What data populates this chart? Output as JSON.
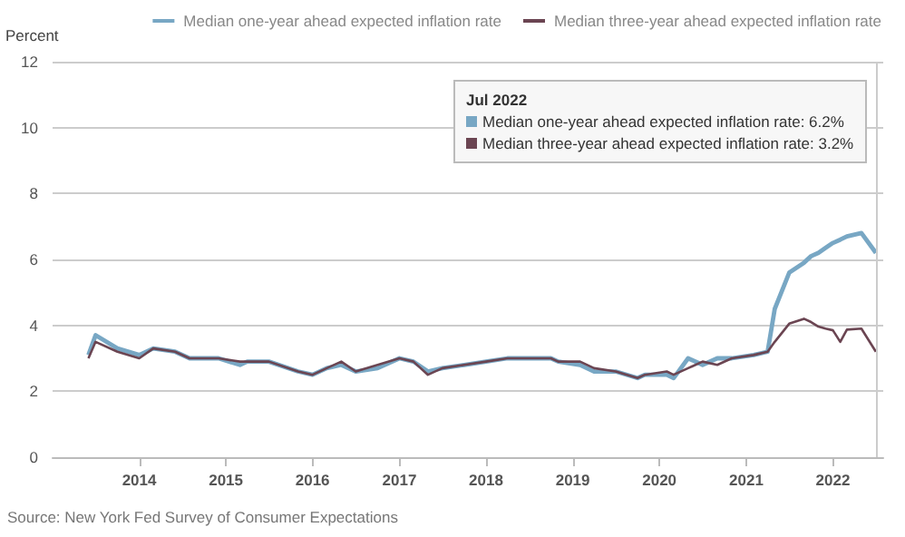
{
  "chart_data": {
    "type": "line",
    "ylabel": "Percent",
    "x": [
      "2013-06",
      "2013-07",
      "2013-10",
      "2014-01",
      "2014-03",
      "2014-06",
      "2014-08",
      "2014-12",
      "2015-03",
      "2015-04",
      "2015-07",
      "2015-11",
      "2016-01",
      "2016-03",
      "2016-05",
      "2016-07",
      "2016-10",
      "2017-01",
      "2017-03",
      "2017-05",
      "2017-07",
      "2017-10",
      "2018-01",
      "2018-04",
      "2018-07",
      "2018-10",
      "2018-11",
      "2019-02",
      "2019-04",
      "2019-07",
      "2019-10",
      "2019-11",
      "2020-02",
      "2020-03",
      "2020-05",
      "2020-07",
      "2020-09",
      "2020-11",
      "2021-02",
      "2021-04",
      "2021-05",
      "2021-07",
      "2021-09",
      "2021-10",
      "2021-11",
      "2021-12",
      "2022-01",
      "2022-02",
      "2022-03",
      "2022-05",
      "2022-07"
    ],
    "series": [
      {
        "name": "Median one-year ahead expected inflation rate",
        "color": "#78a7c4",
        "values": [
          3.1,
          3.7,
          3.3,
          3.1,
          3.3,
          3.2,
          3.0,
          3.0,
          2.8,
          2.9,
          2.9,
          2.6,
          2.5,
          2.7,
          2.8,
          2.6,
          2.7,
          3.0,
          2.9,
          2.6,
          2.7,
          2.8,
          2.9,
          3.0,
          3.0,
          3.0,
          2.9,
          2.8,
          2.6,
          2.6,
          2.4,
          2.5,
          2.5,
          2.4,
          3.0,
          2.8,
          3.0,
          3.0,
          3.1,
          3.2,
          4.5,
          5.6,
          5.9,
          6.1,
          6.2,
          6.35,
          6.5,
          6.6,
          6.7,
          6.8,
          6.2
        ]
      },
      {
        "name": "Median three-year ahead expected inflation rate",
        "color": "#6b4552",
        "values": [
          3.0,
          3.5,
          3.2,
          3.0,
          3.3,
          3.2,
          3.0,
          3.0,
          2.9,
          2.9,
          2.9,
          2.6,
          2.5,
          2.7,
          2.9,
          2.6,
          2.8,
          3.0,
          2.9,
          2.5,
          2.7,
          2.8,
          2.9,
          3.0,
          3.0,
          3.0,
          2.9,
          2.9,
          2.7,
          2.6,
          2.4,
          2.5,
          2.6,
          2.5,
          2.7,
          2.9,
          2.8,
          3.0,
          3.1,
          3.2,
          3.5,
          4.05,
          4.2,
          4.1,
          3.96,
          3.9,
          3.85,
          3.5,
          3.87,
          3.9,
          3.2
        ]
      }
    ],
    "xlim": [
      "2013-01",
      "2022-08"
    ],
    "xticks": [
      "2014",
      "2015",
      "2016",
      "2017",
      "2018",
      "2019",
      "2020",
      "2021",
      "2022"
    ],
    "ylim": [
      0,
      12
    ],
    "yticks": [
      0,
      2,
      4,
      6,
      8,
      10,
      12
    ],
    "grid": "y",
    "legend": "top right",
    "marker": "none",
    "line_style": "solid",
    "ref_lines": [
      {
        "axis": "x",
        "value": "2022-07",
        "color": "#cccccc"
      }
    ],
    "annotations": [
      "Jul 2022",
      "Median one-year ahead expected inflation rate: 6.2%",
      "Median three-year ahead expected inflation rate: 3.2%",
      "Source: New York Fed Survey of Consumer Expectations"
    ]
  }
}
